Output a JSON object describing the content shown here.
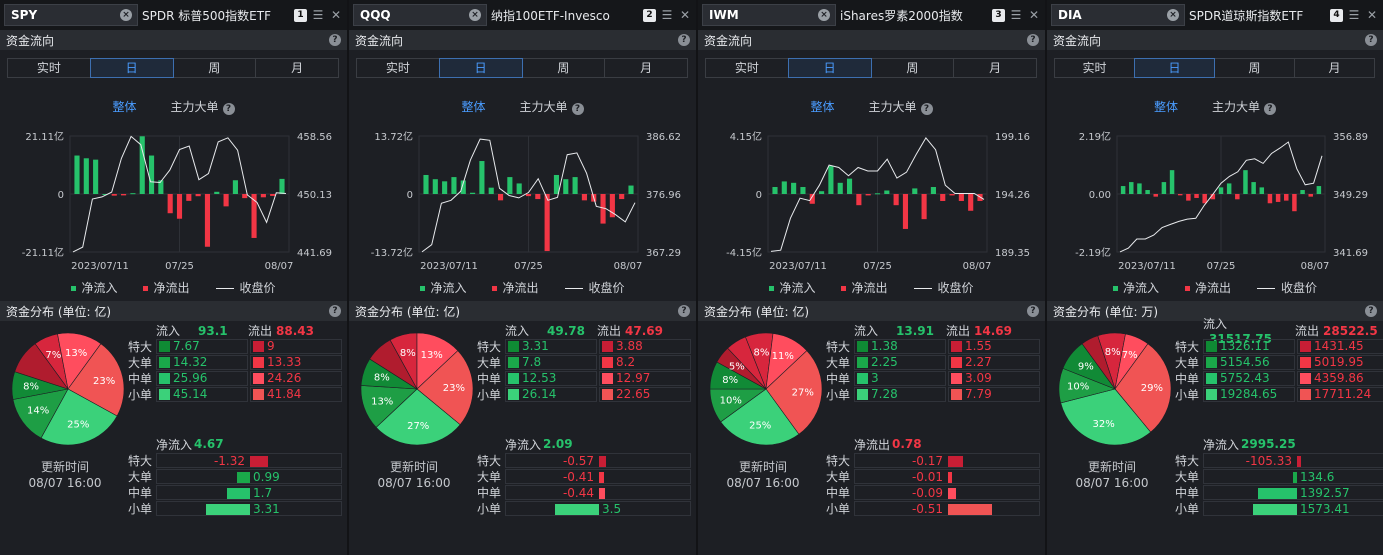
{
  "labels": {
    "flow": "资金流向",
    "tabs": [
      "实时",
      "日",
      "周",
      "月"
    ],
    "active_tab": 1,
    "sub_all": "整体",
    "sub_big": "主力大单",
    "legend_in": "净流入",
    "legend_out": "净流出",
    "legend_close": "收盘价",
    "inflow": "流入",
    "outflow": "流出",
    "rows": [
      "特大",
      "大单",
      "中单",
      "小单"
    ],
    "update_time_label": "更新时间",
    "question": "?"
  },
  "colors": {
    "green": "#26c26b",
    "red": "#f23645",
    "green_dark": "#16a34a",
    "red_light": "#f05454",
    "line": "#e8eaed"
  },
  "panels": [
    {
      "symbol": "SPY",
      "name": "SPDR 标普500指数ETF",
      "index": "1",
      "dist_title": "资金分布 (单位: 亿)",
      "yleft": [
        "21.11亿",
        "0",
        "-21.11亿"
      ],
      "yright": [
        "458.56",
        "450.13",
        "441.69"
      ],
      "xlabels": [
        "2023/07/11",
        "07/25",
        "08/07"
      ],
      "chart_data": {
        "type": "bar",
        "flows": [
          14,
          13,
          12.5,
          0,
          -0.6,
          -0.5,
          0.3,
          21,
          14,
          5,
          -7,
          -9,
          -2.5,
          -0.8,
          -19.2,
          0.8,
          -4.5,
          5,
          -1.5,
          -16,
          -1.2,
          -0.7,
          5.5
        ],
        "close": [
          441.7,
          442.4,
          449.4,
          449.7,
          450.4,
          455.3,
          458.5,
          457.3,
          451.9,
          451.8,
          453.6,
          456.6,
          457.1,
          452.2,
          453.1,
          457.7,
          458.3,
          456.5,
          450.0,
          448.9,
          446.0,
          450.3,
          450.2
        ],
        "ymin": -21.11,
        "ymax": 21.11,
        "pmin": 441.69,
        "pmax": 458.56
      },
      "pie": [
        {
          "pct": 7,
          "label": "7%",
          "color": "#d7263d"
        },
        {
          "pct": 13,
          "label": "13%",
          "color": "#ff4d5e"
        },
        {
          "pct": 23,
          "label": "23%",
          "color": "#f05454"
        },
        {
          "pct": 25,
          "label": "25%",
          "color": "#3bd17a"
        },
        {
          "pct": 14,
          "label": "14%",
          "color": "#1e9e45"
        },
        {
          "pct": 8,
          "label": "8%",
          "color": "#118a36"
        },
        {
          "pct": 10,
          "label": "",
          "color": "#b01c2e"
        }
      ],
      "inflow": "93.1",
      "outflow": "88.43",
      "in_vals": [
        "7.67",
        "14.32",
        "25.96",
        "45.14"
      ],
      "out_vals": [
        "9",
        "13.33",
        "24.26",
        "41.84"
      ],
      "in_raw": [
        7.67,
        14.32,
        25.96,
        45.14
      ],
      "out_raw": [
        9,
        13.33,
        24.26,
        41.84
      ],
      "net_label": "净流入",
      "net_total": "4.67",
      "net_color": "#26c26b",
      "net_vals": [
        "-1.32",
        "0.99",
        "1.7",
        "3.31"
      ],
      "net_raw": [
        -1.32,
        0.99,
        1.7,
        3.31
      ],
      "update_time": "08/07 16:00"
    },
    {
      "symbol": "QQQ",
      "name": "纳指100ETF-Invesco",
      "index": "2",
      "dist_title": "资金分布 (单位: 亿)",
      "yleft": [
        "13.72亿",
        "0",
        "-13.72亿"
      ],
      "yright": [
        "386.62",
        "376.96",
        "367.29"
      ],
      "xlabels": [
        "2023/07/11",
        "07/25",
        "08/07"
      ],
      "chart_data": {
        "type": "bar",
        "flows": [
          4.5,
          3.5,
          3,
          4,
          3.2,
          0.3,
          7.8,
          1.5,
          -1.5,
          4,
          2.5,
          -0.5,
          -1.2,
          -13.5,
          4.5,
          3.5,
          4,
          -1.5,
          -1.8,
          -7,
          -5.5,
          -1.2,
          2
        ],
        "close": [
          367.3,
          368.5,
          375.4,
          375.9,
          377.4,
          382.6,
          386.1,
          385.9,
          377.9,
          376.7,
          376.3,
          377.2,
          379.5,
          375.9,
          376.4,
          383.5,
          383.8,
          380.4,
          374.9,
          374.5,
          373.5,
          372.3,
          375.5
        ],
        "ymin": -13.72,
        "ymax": 13.72,
        "pmin": 367.29,
        "pmax": 386.62
      },
      "pie": [
        {
          "pct": 8,
          "label": "8%",
          "color": "#d7263d"
        },
        {
          "pct": 13,
          "label": "13%",
          "color": "#ff4d5e"
        },
        {
          "pct": 23,
          "label": "23%",
          "color": "#f05454"
        },
        {
          "pct": 27,
          "label": "27%",
          "color": "#3bd17a"
        },
        {
          "pct": 13,
          "label": "13%",
          "color": "#1e9e45"
        },
        {
          "pct": 8,
          "label": "8%",
          "color": "#118a36"
        },
        {
          "pct": 8,
          "label": "",
          "color": "#b01c2e"
        }
      ],
      "inflow": "49.78",
      "outflow": "47.69",
      "in_vals": [
        "3.31",
        "7.8",
        "12.53",
        "26.14"
      ],
      "out_vals": [
        "3.88",
        "8.2",
        "12.97",
        "22.65"
      ],
      "in_raw": [
        3.31,
        7.8,
        12.53,
        26.14
      ],
      "out_raw": [
        3.88,
        8.2,
        12.97,
        22.65
      ],
      "net_label": "净流入",
      "net_total": "2.09",
      "net_color": "#26c26b",
      "net_vals": [
        "-0.57",
        "-0.41",
        "-0.44",
        "3.5"
      ],
      "net_raw": [
        -0.57,
        -0.41,
        -0.44,
        3.5
      ],
      "update_time": "08/07 16:00"
    },
    {
      "symbol": "IWM",
      "name": "iShares罗素2000指数",
      "index": "3",
      "dist_title": "资金分布 (单位: 亿)",
      "yleft": [
        "4.15亿",
        "0",
        "-4.15亿"
      ],
      "yright": [
        "199.16",
        "194.26",
        "189.35"
      ],
      "xlabels": [
        "2023/07/11",
        "07/25",
        "08/07"
      ],
      "chart_data": {
        "type": "bar",
        "flows": [
          0.5,
          0.9,
          0.8,
          0.5,
          -0.7,
          0.2,
          2.0,
          0.8,
          1.1,
          -0.8,
          -0.1,
          0.05,
          0.25,
          -0.8,
          -2.5,
          0.4,
          -1.8,
          0.5,
          -0.5,
          -0.1,
          -0.5,
          -1.2,
          -0.5
        ],
        "close": [
          189.4,
          189.5,
          192.2,
          193.9,
          193.7,
          195.0,
          196.7,
          196.5,
          195.8,
          196.5,
          196.2,
          196.2,
          197.2,
          195.6,
          196.1,
          197.6,
          199.0,
          198.0,
          195.0,
          194.3,
          194.3,
          194.3,
          193.8
        ],
        "ymin": -4.15,
        "ymax": 4.15,
        "pmin": 189.35,
        "pmax": 199.16
      },
      "pie": [
        {
          "pct": 8,
          "label": "8%",
          "color": "#d7263d"
        },
        {
          "pct": 11,
          "label": "11%",
          "color": "#ff4d5e"
        },
        {
          "pct": 27,
          "label": "27%",
          "color": "#f05454"
        },
        {
          "pct": 25,
          "label": "25%",
          "color": "#3bd17a"
        },
        {
          "pct": 10,
          "label": "10%",
          "color": "#1e9e45"
        },
        {
          "pct": 8,
          "label": "8%",
          "color": "#118a36"
        },
        {
          "pct": 5,
          "label": "5%",
          "color": "#b01c2e"
        },
        {
          "pct": 6,
          "label": "",
          "color": "#d7263d"
        }
      ],
      "inflow": "13.91",
      "outflow": "14.69",
      "in_vals": [
        "1.38",
        "2.25",
        "3",
        "7.28"
      ],
      "out_vals": [
        "1.55",
        "2.27",
        "3.09",
        "7.79"
      ],
      "in_raw": [
        1.38,
        2.25,
        3,
        7.28
      ],
      "out_raw": [
        1.55,
        2.27,
        3.09,
        7.79
      ],
      "net_label": "净流出",
      "net_total": "0.78",
      "net_color": "#f23645",
      "net_vals": [
        "-0.17",
        "-0.01",
        "-0.09",
        "-0.51"
      ],
      "net_raw": [
        -0.17,
        -0.01,
        -0.09,
        -0.51
      ],
      "update_time": "08/07 16:00"
    },
    {
      "symbol": "DIA",
      "name": "SPDR道琼斯指数ETF",
      "index": "4",
      "dist_title": "资金分布 (单位: 万)",
      "yleft": [
        "2.19亿",
        "0.00",
        "-2.19亿"
      ],
      "yright": [
        "356.89",
        "349.29",
        "341.69"
      ],
      "xlabels": [
        "2023/07/11",
        "07/25",
        "08/07"
      ],
      "chart_data": {
        "type": "bar",
        "flows": [
          0.3,
          0.45,
          0.4,
          0.15,
          -0.1,
          0.45,
          0.9,
          -0.05,
          -0.25,
          -0.15,
          -0.35,
          -0.2,
          0.25,
          0.4,
          -0.2,
          0.9,
          0.45,
          0.25,
          -0.35,
          -0.3,
          -0.25,
          -0.65,
          0.15,
          -0.1,
          0.3
        ],
        "close": [
          341.7,
          342.2,
          343.4,
          343.4,
          343.9,
          344.9,
          345.3,
          345.7,
          346.0,
          346.1,
          347.8,
          349.2,
          350.7,
          351.6,
          352.2,
          353.7,
          353.9,
          353.3,
          354.6,
          355.3,
          356.1,
          352.6,
          350.5,
          350.7,
          354.3
        ],
        "ymin": -2.19,
        "ymax": 2.19,
        "pmin": 341.69,
        "pmax": 356.89
      },
      "pie": [
        {
          "pct": 8,
          "label": "8%",
          "color": "#d7263d"
        },
        {
          "pct": 7,
          "label": "7%",
          "color": "#ff4d5e"
        },
        {
          "pct": 29,
          "label": "29%",
          "color": "#f05454"
        },
        {
          "pct": 32,
          "label": "32%",
          "color": "#3bd17a"
        },
        {
          "pct": 10,
          "label": "10%",
          "color": "#1e9e45"
        },
        {
          "pct": 9,
          "label": "9%",
          "color": "#118a36"
        },
        {
          "pct": 5,
          "label": "",
          "color": "#b01c2e"
        }
      ],
      "inflow": "31517.75",
      "outflow": "28522.5",
      "in_vals": [
        "1326.11",
        "5154.56",
        "5752.43",
        "19284.65"
      ],
      "out_vals": [
        "1431.45",
        "5019.95",
        "4359.86",
        "17711.24"
      ],
      "in_raw": [
        1326.11,
        5154.56,
        5752.43,
        19284.65
      ],
      "out_raw": [
        1431.45,
        5019.95,
        4359.86,
        17711.24
      ],
      "net_label": "净流入",
      "net_total": "2995.25",
      "net_color": "#26c26b",
      "net_vals": [
        "-105.33",
        "134.6",
        "1392.57",
        "1573.41"
      ],
      "net_raw": [
        -105.33,
        134.6,
        1392.57,
        1573.41
      ],
      "update_time": "08/07 16:00"
    }
  ]
}
